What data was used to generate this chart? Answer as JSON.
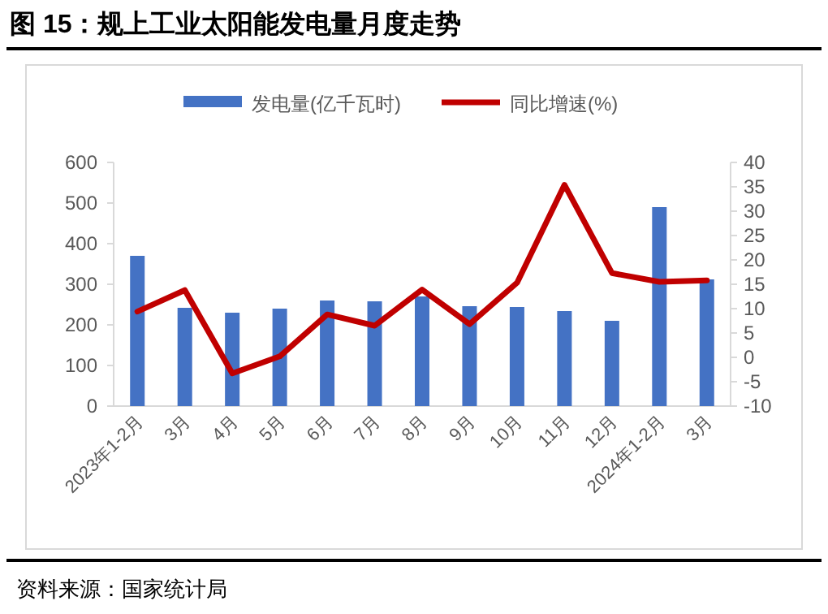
{
  "chart_data": {
    "type": "bar",
    "title": "图 15：规上工业太阳能发电量月度走势",
    "categories": [
      "2023年1-2月",
      "3月",
      "4月",
      "5月",
      "6月",
      "7月",
      "8月",
      "9月",
      "10月",
      "11月",
      "12月",
      "2024年1-2月",
      "3月"
    ],
    "series": [
      {
        "name": "发电量(亿千瓦时)",
        "color": "#4472c4",
        "values": [
          370,
          242,
          230,
          240,
          260,
          258,
          270,
          246,
          244,
          234,
          210,
          490,
          312
        ]
      },
      {
        "name": "同比增速(%)",
        "type": "line",
        "axis": "y2",
        "color": "#c00000",
        "values": [
          9.4,
          13.8,
          -3.3,
          0.2,
          8.8,
          6.5,
          13.9,
          6.8,
          15.3,
          35.4,
          17.3,
          15.5,
          15.8
        ]
      }
    ],
    "ylim": [
      0,
      600
    ],
    "yticks": [
      0,
      100,
      200,
      300,
      400,
      500,
      600
    ],
    "y2lim": [
      -10,
      40
    ],
    "y2ticks": [
      -10,
      -5,
      0,
      5,
      10,
      15,
      20,
      25,
      30,
      35,
      40
    ],
    "legend": "top",
    "grid": false,
    "annotations": [
      "资料来源：国家统计局"
    ]
  }
}
